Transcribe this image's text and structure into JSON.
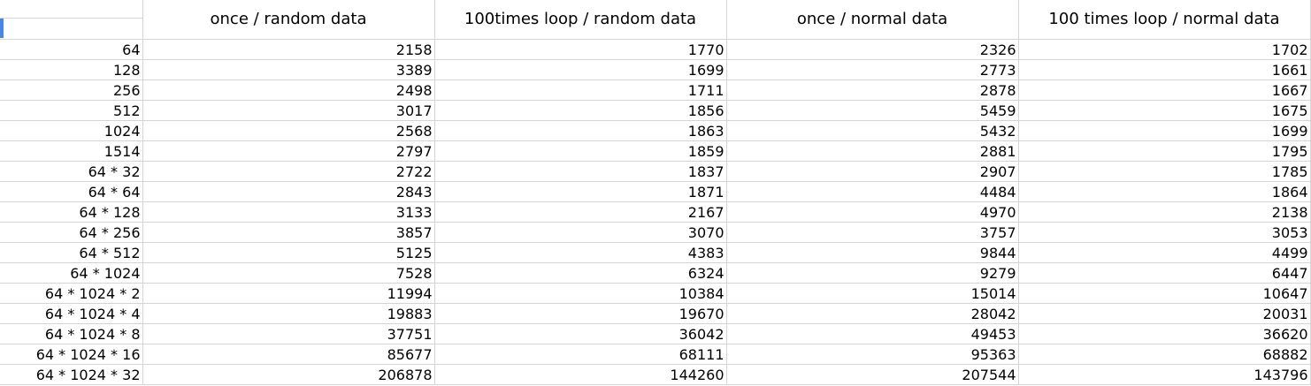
{
  "columns": [
    "once / random data",
    "100times loop / random data",
    "once / normal data",
    "100 times loop / normal data"
  ],
  "rows": [
    {
      "label": "64",
      "values": [
        "2158",
        "1770",
        "2326",
        "1702"
      ]
    },
    {
      "label": "128",
      "values": [
        "3389",
        "1699",
        "2773",
        "1661"
      ]
    },
    {
      "label": "256",
      "values": [
        "2498",
        "1711",
        "2878",
        "1667"
      ]
    },
    {
      "label": "512",
      "values": [
        "3017",
        "1856",
        "5459",
        "1675"
      ]
    },
    {
      "label": "1024",
      "values": [
        "2568",
        "1863",
        "5432",
        "1699"
      ]
    },
    {
      "label": "1514",
      "values": [
        "2797",
        "1859",
        "2881",
        "1795"
      ]
    },
    {
      "label": "64 * 32",
      "values": [
        "2722",
        "1837",
        "2907",
        "1785"
      ]
    },
    {
      "label": "64 * 64",
      "values": [
        "2843",
        "1871",
        "4484",
        "1864"
      ]
    },
    {
      "label": "64 * 128",
      "values": [
        "3133",
        "2167",
        "4970",
        "2138"
      ]
    },
    {
      "label": "64 * 256",
      "values": [
        "3857",
        "3070",
        "3757",
        "3053"
      ]
    },
    {
      "label": "64 * 512",
      "values": [
        "5125",
        "4383",
        "9844",
        "4499"
      ]
    },
    {
      "label": "64 * 1024",
      "values": [
        "7528",
        "6324",
        "9279",
        "6447"
      ]
    },
    {
      "label": "64 * 1024 * 2",
      "values": [
        "11994",
        "10384",
        "15014",
        "10647"
      ]
    },
    {
      "label": "64 * 1024 * 4",
      "values": [
        "19883",
        "19670",
        "28042",
        "20031"
      ]
    },
    {
      "label": "64 * 1024 * 8",
      "values": [
        "37751",
        "36042",
        "49453",
        "36620"
      ]
    },
    {
      "label": "64 * 1024 * 16",
      "values": [
        "85677",
        "68111",
        "95363",
        "68882"
      ]
    },
    {
      "label": "64 * 1024 * 32",
      "values": [
        "206878",
        "144260",
        "207544",
        "143796"
      ]
    }
  ],
  "colors": {
    "gridline": "#d4d4d4",
    "selection": "#4a86e8"
  }
}
